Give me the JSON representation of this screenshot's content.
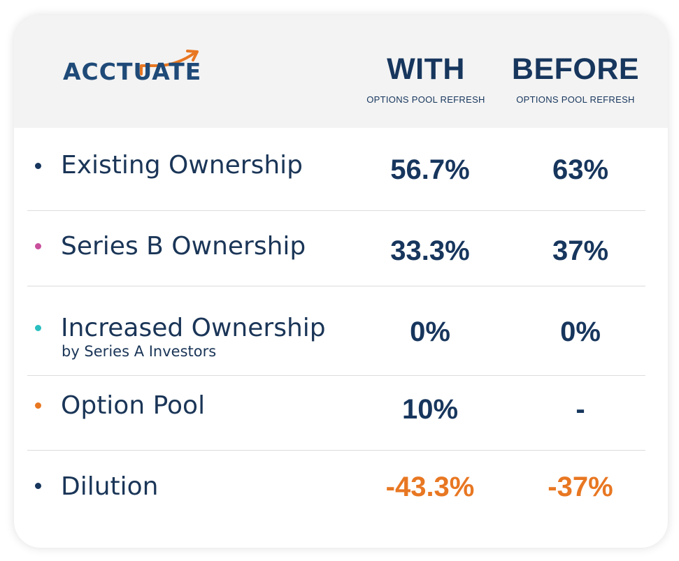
{
  "logo": {
    "text": "ACCTUATE",
    "icon": "rising-arrow-icon",
    "color": "#1f4a78",
    "accent": "#e87722"
  },
  "columns": [
    {
      "title": "WITH",
      "subtitle": "OPTIONS POOL REFRESH"
    },
    {
      "title": "BEFORE",
      "subtitle": "OPTIONS POOL REFRESH"
    }
  ],
  "rows": [
    {
      "label": "Existing Ownership",
      "sublabel": "",
      "bullet_color": "#17365d",
      "with": "56.7%",
      "before": "63%"
    },
    {
      "label": "Series B Ownership",
      "sublabel": "",
      "bullet_color": "#c94f9c",
      "with": "33.3%",
      "before": "37%"
    },
    {
      "label": "Increased Ownership",
      "sublabel": "by Series A Investors",
      "bullet_color": "#2bbfbf",
      "with": "0%",
      "before": "0%"
    },
    {
      "label": "Option Pool",
      "sublabel": "",
      "bullet_color": "#e87722",
      "with": "10%",
      "before": "-"
    },
    {
      "label": "Dilution",
      "sublabel": "",
      "bullet_color": "#17365d",
      "with": "-43.3%",
      "before": "-37%"
    }
  ]
}
